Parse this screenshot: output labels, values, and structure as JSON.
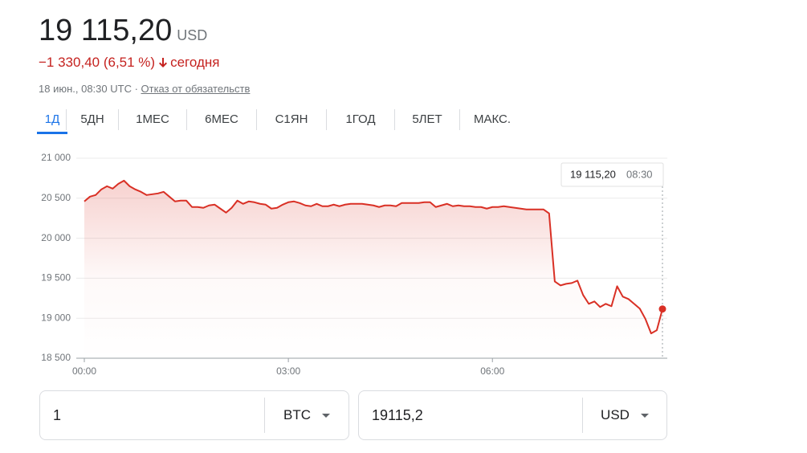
{
  "header": {
    "price": "19 115,20",
    "currency": "USD",
    "change": "−1 330,40 (6,51 %)",
    "period": "сегодня",
    "timestamp": "18 июн., 08:30 UTC · ",
    "disclaimer": "Отказ от обязательств"
  },
  "tabs": [
    "1Д",
    "5ДН",
    "1МЕС",
    "6МЕС",
    "С1ЯН",
    "1ГОД",
    "5ЛЕТ",
    "МАКС."
  ],
  "active_tab": 0,
  "chart_data": {
    "type": "line",
    "color": "#d93025",
    "x": [
      0,
      5,
      10,
      15,
      20,
      25,
      30,
      35,
      40,
      45,
      50,
      55,
      60,
      65,
      70,
      75,
      80,
      85,
      90,
      95,
      100,
      105,
      110,
      115,
      120,
      125,
      130,
      135,
      140,
      145,
      150,
      155,
      160,
      165,
      170,
      175,
      180,
      185,
      190,
      195,
      200,
      205,
      210,
      215,
      220,
      225,
      230,
      235,
      240,
      245,
      250,
      255,
      260,
      265,
      270,
      275,
      280,
      285,
      290,
      295,
      300,
      305,
      310,
      315,
      320,
      325,
      330,
      335,
      340,
      345,
      350,
      355,
      360,
      365,
      370,
      375,
      380,
      385,
      390,
      395,
      400,
      405,
      410,
      415,
      420,
      425,
      430,
      435,
      440,
      445,
      450,
      455,
      460,
      465,
      470,
      475,
      480,
      485,
      490,
      495,
      500,
      505,
      510
    ],
    "values": [
      20460,
      20520,
      20540,
      20610,
      20650,
      20620,
      20680,
      20720,
      20650,
      20610,
      20580,
      20540,
      20550,
      20560,
      20580,
      20520,
      20460,
      20470,
      20470,
      20390,
      20390,
      20380,
      20410,
      20420,
      20370,
      20320,
      20380,
      20470,
      20430,
      20460,
      20450,
      20430,
      20420,
      20370,
      20380,
      20420,
      20450,
      20460,
      20440,
      20410,
      20400,
      20430,
      20400,
      20400,
      20420,
      20400,
      20420,
      20430,
      20430,
      20430,
      20420,
      20410,
      20390,
      20410,
      20410,
      20400,
      20440,
      20440,
      20440,
      20440,
      20450,
      20450,
      20390,
      20410,
      20430,
      20400,
      20410,
      20400,
      20400,
      20390,
      20390,
      20370,
      20390,
      20390,
      20400,
      20390,
      20380,
      20370,
      20360,
      20360,
      20360,
      20360,
      20310,
      19460,
      19410,
      19430,
      19440,
      19470,
      19290,
      19180,
      19210,
      19140,
      19180,
      19150,
      19400,
      19270,
      19240,
      19180,
      19120,
      18990,
      18810,
      18850,
      19115.2
    ],
    "xlim": [
      0,
      510
    ],
    "xticks": [
      {
        "value": 0,
        "label": "00:00"
      },
      {
        "value": 180,
        "label": "03:00"
      },
      {
        "value": 360,
        "label": "06:00"
      }
    ],
    "ylim": [
      18500,
      21000
    ],
    "yticks": [
      {
        "value": 18500,
        "label": "18 500"
      },
      {
        "value": 19000,
        "label": "19 000"
      },
      {
        "value": 19500,
        "label": "19 500"
      },
      {
        "value": 20000,
        "label": "20 000"
      },
      {
        "value": 20500,
        "label": "20 500"
      },
      {
        "value": 21000,
        "label": "21 000"
      }
    ],
    "grid": true,
    "tooltip": {
      "price": "19 115,20",
      "time": "08:30"
    }
  },
  "converter": {
    "from_amount": "1",
    "from_currency": "BTC",
    "to_amount": "19115,2",
    "to_currency": "USD"
  }
}
